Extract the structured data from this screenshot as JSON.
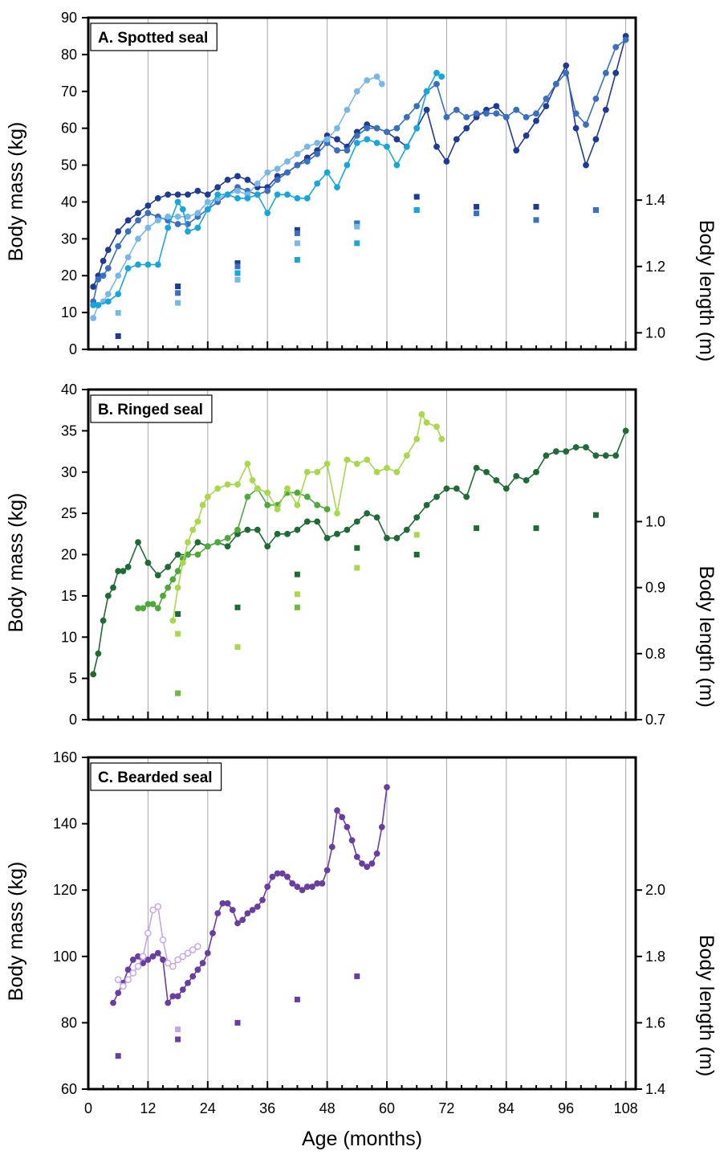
{
  "chart_data": [
    {
      "type": "line",
      "title": "A. Spotted seal",
      "xlabel": "Age (months)",
      "ylabel": "Body mass (kg)",
      "y2label": "Body length (m)",
      "xlim": [
        0,
        110
      ],
      "ylim": [
        0,
        90
      ],
      "y2lim": [
        0.95,
        1.95
      ],
      "xticks": [
        0,
        12,
        24,
        36,
        48,
        60,
        72,
        84,
        96,
        108
      ],
      "yticks": [
        0,
        10,
        20,
        30,
        40,
        50,
        60,
        70,
        80,
        90
      ],
      "y2ticks": [
        1.0,
        1.2,
        1.4
      ],
      "grid_x": true,
      "series": [
        {
          "color": "#1f3a93",
          "marker": "circle",
          "x": [
            1,
            2,
            3,
            4,
            6,
            8,
            10,
            12,
            14,
            16,
            18,
            20,
            22,
            24,
            26,
            28,
            30,
            32,
            34,
            36,
            38,
            40,
            42,
            44,
            46,
            48,
            50,
            52,
            54,
            56,
            58,
            60,
            62,
            64,
            66,
            68,
            70,
            72,
            74,
            76,
            78,
            80,
            82,
            84,
            86,
            88,
            90,
            92,
            94,
            96,
            98,
            100,
            102,
            104,
            106,
            108
          ],
          "y": [
            17,
            20,
            24,
            27,
            32,
            35,
            37,
            39,
            41,
            42,
            42,
            42,
            43,
            42,
            44,
            46,
            47,
            46,
            44,
            44,
            47,
            48,
            50,
            52,
            54,
            58,
            57,
            55,
            59,
            61,
            60,
            59,
            57,
            55,
            60,
            65,
            55,
            51,
            57,
            60,
            63,
            65,
            66,
            63,
            54,
            58,
            62,
            66,
            72,
            77,
            60,
            50,
            57,
            65,
            75,
            85
          ]
        },
        {
          "color": "#3a6fc0",
          "marker": "circle",
          "x": [
            1,
            2,
            3,
            4,
            6,
            8,
            10,
            12,
            14,
            16,
            18,
            20,
            22,
            24,
            26,
            28,
            30,
            32,
            34,
            36,
            38,
            40,
            42,
            44,
            46,
            48,
            50,
            52,
            54,
            56,
            58,
            60,
            62,
            64,
            66,
            68,
            70,
            72,
            74,
            76,
            78,
            80,
            82,
            84,
            86,
            88,
            90,
            92,
            94,
            96,
            98,
            100,
            102,
            104,
            106,
            108
          ],
          "y": [
            13,
            19,
            20,
            22,
            28,
            32,
            35,
            37,
            36,
            35,
            34,
            34,
            36,
            38,
            40,
            42,
            44,
            43,
            42,
            43,
            46,
            48,
            50,
            51,
            53,
            56,
            54,
            54,
            58,
            60,
            60,
            59,
            60,
            63,
            66,
            70,
            72,
            63,
            65,
            63,
            64,
            64,
            64,
            63,
            65,
            63,
            64,
            68,
            72,
            75,
            64,
            61,
            68,
            75,
            82,
            84
          ]
        },
        {
          "color": "#78b8e6",
          "marker": "circle",
          "x": [
            1,
            2,
            3,
            4,
            6,
            8,
            10,
            12,
            14,
            16,
            18,
            20,
            22,
            24,
            26,
            28,
            30,
            32,
            34,
            36,
            38,
            40,
            42,
            44,
            46,
            48,
            50,
            52,
            54,
            56,
            58,
            59
          ],
          "y": [
            8.5,
            12,
            13,
            15,
            20,
            25,
            30,
            33,
            35,
            36,
            36,
            36,
            37,
            40,
            41,
            42,
            43,
            42,
            45,
            48,
            49,
            51,
            53,
            55,
            56,
            57,
            60,
            65,
            70,
            73,
            74,
            72
          ]
        },
        {
          "color": "#17a6dc",
          "marker": "circle",
          "x": [
            1,
            2,
            4,
            6,
            8,
            10,
            12,
            14,
            16,
            18,
            19,
            20,
            22,
            24,
            26,
            28,
            30,
            32,
            34,
            36,
            38,
            40,
            42,
            44,
            46,
            48,
            50,
            52,
            54,
            56,
            58,
            60,
            62,
            64,
            66,
            68,
            70,
            71
          ],
          "y": [
            12,
            12,
            13,
            15,
            22,
            23,
            23,
            23,
            33,
            40,
            38,
            32,
            33,
            38,
            42,
            42,
            41,
            41,
            42,
            37,
            42,
            42,
            41,
            41,
            45,
            48,
            44,
            50,
            56,
            57,
            56,
            55,
            50,
            55,
            60,
            70,
            75,
            74
          ]
        }
      ],
      "length_series": [
        {
          "color": "#1f3a93",
          "x": [
            6,
            18,
            30,
            42,
            54,
            66,
            78,
            90,
            102
          ],
          "y": [
            0.99,
            1.14,
            1.21,
            1.31,
            1.33,
            1.41,
            1.38,
            1.38,
            1.37
          ]
        },
        {
          "color": "#3a6fc0",
          "x": [
            18,
            30,
            42,
            54,
            66,
            78,
            90,
            102
          ],
          "y": [
            1.12,
            1.2,
            1.3,
            1.33,
            1.37,
            1.36,
            1.34,
            1.37
          ]
        },
        {
          "color": "#78b8e6",
          "x": [
            6,
            18,
            30,
            42,
            54
          ],
          "y": [
            1.06,
            1.09,
            1.16,
            1.27,
            1.32
          ]
        },
        {
          "color": "#17a6dc",
          "x": [
            30,
            42,
            54,
            66
          ],
          "y": [
            1.18,
            1.22,
            1.27,
            1.37
          ]
        }
      ]
    },
    {
      "type": "line",
      "title": "B. Ringed seal",
      "xlabel": "Age (months)",
      "ylabel": "Body mass (kg)",
      "y2label": "Body length (m)",
      "xlim": [
        0,
        110
      ],
      "ylim": [
        0,
        40
      ],
      "y2lim": [
        0.7,
        1.2
      ],
      "xticks": [
        0,
        12,
        24,
        36,
        48,
        60,
        72,
        84,
        96,
        108
      ],
      "yticks": [
        0,
        5,
        10,
        15,
        20,
        25,
        30,
        35,
        40
      ],
      "y2ticks": [
        0.7,
        0.8,
        0.9,
        1.0
      ],
      "grid_x": true,
      "series": [
        {
          "color": "#1e6b36",
          "marker": "circle",
          "x": [
            1,
            2,
            3,
            4,
            5,
            6,
            7,
            8,
            10,
            12,
            14,
            16,
            18,
            20,
            22,
            24,
            26,
            28,
            30,
            32,
            34,
            36,
            38,
            40,
            42,
            44,
            46,
            48,
            50,
            52,
            54,
            56,
            58,
            60,
            62,
            64,
            66,
            68,
            70,
            72,
            74,
            76,
            78,
            80,
            82,
            84,
            86,
            88,
            90,
            92,
            94,
            96,
            98,
            100,
            102,
            104,
            106,
            108
          ],
          "y": [
            5.5,
            8,
            12,
            15,
            16,
            18,
            18,
            18.5,
            21.5,
            19,
            17.5,
            18.5,
            20,
            20,
            21.5,
            21,
            21.5,
            21,
            22.5,
            23,
            23,
            21,
            22.5,
            22.5,
            23,
            24,
            24,
            22,
            22.5,
            23,
            24,
            25,
            24.5,
            22,
            22,
            23,
            24.5,
            26,
            27,
            28,
            28,
            27,
            30.5,
            30,
            29,
            28,
            29.5,
            29,
            30,
            32,
            32.5,
            32.5,
            33,
            33,
            32,
            32,
            32,
            35
          ]
        },
        {
          "color": "#4fa93a",
          "marker": "circle",
          "x": [
            10,
            11,
            12,
            13,
            14,
            15,
            16,
            17,
            18,
            19,
            20,
            22,
            24,
            26,
            28,
            30,
            32,
            34,
            36,
            38,
            40,
            42,
            44,
            46,
            48
          ],
          "y": [
            13.5,
            13.5,
            14,
            14,
            13.5,
            15,
            16,
            17,
            18,
            19.5,
            20,
            20,
            21,
            21.5,
            22,
            23,
            27,
            28,
            26,
            26,
            27.5,
            27.5,
            27,
            26,
            25.5
          ]
        },
        {
          "color": "#a7d94a",
          "marker": "circle",
          "x": [
            17,
            18,
            19,
            20,
            21,
            22,
            23,
            24,
            26,
            28,
            30,
            32,
            33,
            34,
            36,
            38,
            40,
            42,
            44,
            46,
            48,
            50,
            52,
            54,
            56,
            58,
            60,
            62,
            64,
            66,
            67,
            68,
            70,
            71
          ],
          "y": [
            12,
            16,
            19,
            21.5,
            23,
            24,
            26,
            27,
            28,
            28.5,
            28.5,
            31,
            29,
            28,
            27.5,
            25.5,
            28,
            26,
            30,
            30,
            31,
            25,
            31.5,
            31,
            31.5,
            30,
            30.5,
            30,
            32,
            34,
            37,
            36,
            35.5,
            34
          ]
        }
      ],
      "length_series": [
        {
          "color": "#1e6b36",
          "x": [
            18,
            30,
            42,
            54,
            66,
            78,
            90,
            102
          ],
          "y": [
            0.86,
            0.87,
            0.92,
            0.96,
            0.95,
            0.99,
            0.99,
            1.01
          ]
        },
        {
          "color": "#6dba3c",
          "x": [
            18,
            42
          ],
          "y": [
            0.74,
            0.87
          ]
        },
        {
          "color": "#a7d94a",
          "x": [
            18,
            30,
            42,
            54,
            66
          ],
          "y": [
            0.83,
            0.81,
            0.89,
            0.93,
            0.98
          ]
        }
      ]
    },
    {
      "type": "line",
      "title": "C. Bearded seal",
      "xlabel": "Age (months)",
      "ylabel": "Body mass (kg)",
      "y2label": "Body length (m)",
      "xlim": [
        0,
        110
      ],
      "ylim": [
        60,
        160
      ],
      "y2lim": [
        1.4,
        2.4
      ],
      "xticks": [
        0,
        12,
        24,
        36,
        48,
        60,
        72,
        84,
        96,
        108
      ],
      "yticks": [
        60,
        80,
        100,
        120,
        140,
        160
      ],
      "y2ticks": [
        1.4,
        1.6,
        1.8,
        2.0
      ],
      "xticklabels": [
        "0",
        "12",
        "24",
        "36",
        "48",
        "60",
        "72",
        "84",
        "96",
        "108"
      ],
      "grid_x": true,
      "series": [
        {
          "color": "#6a3ea1",
          "marker": "circle",
          "x": [
            5,
            6,
            7,
            8,
            9,
            10,
            11,
            12,
            13,
            14,
            15,
            16,
            17,
            18,
            19,
            20,
            21,
            22,
            23,
            24,
            25,
            26,
            27,
            28,
            29,
            30,
            31,
            32,
            33,
            34,
            35,
            36,
            37,
            38,
            39,
            40,
            41,
            42,
            43,
            44,
            45,
            46,
            47,
            48,
            49,
            50,
            51,
            52,
            53,
            54,
            55,
            56,
            57,
            58,
            59,
            60
          ],
          "y": [
            86,
            89,
            92,
            96,
            99,
            100,
            98,
            99,
            100,
            101,
            99,
            86,
            88,
            88,
            90,
            92,
            94,
            96,
            98,
            101,
            107,
            113,
            116,
            116,
            114,
            110,
            111,
            113,
            114,
            115,
            117,
            121,
            124,
            125,
            125,
            124,
            122,
            121,
            120,
            121,
            121,
            122,
            122,
            126,
            133,
            144,
            142,
            139,
            135,
            130,
            128,
            127,
            128,
            131,
            139,
            151
          ]
        },
        {
          "color": "#c8a3e8",
          "marker": "circle-open",
          "x": [
            6,
            7,
            8,
            9,
            10,
            11,
            12,
            13,
            14,
            15,
            16,
            17,
            18,
            19,
            20,
            21,
            22
          ],
          "y": [
            93,
            91,
            93,
            95,
            97,
            100,
            107,
            114,
            115,
            105,
            98,
            97,
            99,
            100,
            101,
            102,
            103
          ]
        }
      ],
      "length_series": [
        {
          "color": "#6a3ea1",
          "x": [
            6,
            18,
            30,
            42,
            54
          ],
          "y": [
            1.5,
            1.55,
            1.6,
            1.67,
            1.74
          ]
        },
        {
          "color": "#c8a3e8",
          "x": [
            18
          ],
          "y": [
            1.58
          ]
        }
      ]
    }
  ]
}
